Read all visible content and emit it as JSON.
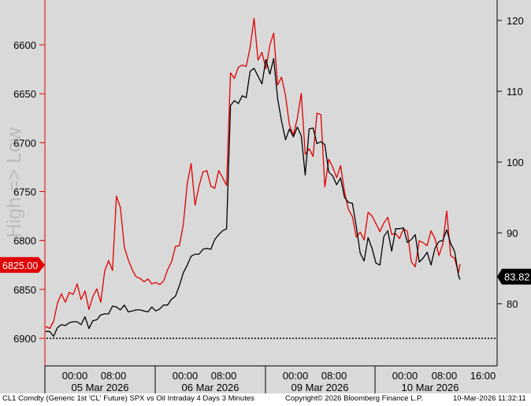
{
  "colors": {
    "plot_bg": "#d9d9d9",
    "spx_line": "#000000",
    "oil_line": "#e00000",
    "left_axis": "#e00000",
    "right_axis": "#000000"
  },
  "chart_data": {
    "type": "line",
    "watermark": "High => Low",
    "left_axis": {
      "reversed": true,
      "range": [
        6575,
        6925
      ],
      "ticks": [
        6600,
        6650,
        6700,
        6750,
        6800,
        6850,
        6900
      ],
      "tick_labels": [
        "6600",
        "6650",
        "6700",
        "6750",
        "6800",
        "6850",
        "6900"
      ],
      "reference_line": 6900,
      "marker": {
        "value": 6825,
        "label": "6825.00"
      }
    },
    "right_axis": {
      "range": [
        72.5,
        123.5
      ],
      "ticks": [
        80,
        90,
        100,
        110,
        120
      ],
      "tick_labels": [
        "80",
        "90",
        "100",
        "110",
        "120"
      ],
      "marker": {
        "value": 83.82,
        "label": "83.82"
      }
    },
    "x_axis": {
      "time_labels": [
        "00:00",
        "08:00",
        "00:00",
        "08:00",
        "00:00",
        "08:00",
        "00:00",
        "08:00",
        "16:00"
      ],
      "day_labels": [
        "05 Mar 2026",
        "06 Mar 2026",
        "09 Mar 2026",
        "10 Mar 2026"
      ]
    },
    "series": [
      {
        "id": "oil",
        "axis": "right",
        "x": [
          0,
          5,
          10,
          15,
          20,
          25,
          30,
          35,
          40,
          45,
          50,
          55,
          60,
          65,
          70,
          75,
          80,
          85,
          90,
          95,
          100,
          105,
          110,
          115,
          120,
          125,
          130,
          135,
          140,
          145,
          150,
          155,
          160,
          165,
          170,
          175,
          180,
          185,
          190,
          195,
          200,
          205,
          210,
          215,
          220,
          225,
          230,
          235,
          240,
          245,
          250,
          255,
          260,
          265,
          270,
          275,
          280,
          285,
          290,
          295,
          300,
          305,
          310,
          315,
          320,
          325,
          330,
          335,
          340,
          345,
          350,
          355,
          360,
          365,
          370,
          375,
          380,
          385,
          390,
          395,
          400,
          405,
          410,
          415,
          420,
          425,
          430,
          435,
          440,
          445,
          450,
          455,
          460,
          465,
          470,
          475,
          480,
          485,
          490,
          495,
          500,
          505,
          510,
          515,
          520,
          525,
          527
        ],
        "values": [
          76.8,
          76.5,
          77.5,
          80.1,
          81.4,
          80.2,
          81.6,
          81.3,
          82.8,
          80.6,
          81.8,
          79.2,
          81.0,
          82.1,
          80.2,
          84.6,
          86.1,
          84.7,
          95.2,
          93.6,
          88.0,
          86.2,
          84.8,
          83.8,
          83.6,
          83.1,
          83.5,
          82.8,
          83.0,
          82.7,
          83.2,
          84.8,
          85.9,
          88.1,
          88.2,
          91.2,
          97.0,
          99.8,
          93.9,
          96.6,
          98.6,
          98.8,
          96.6,
          96.3,
          98.8,
          97.8,
          96.7,
          112.6,
          111.8,
          113.4,
          113.7,
          113.5,
          116.2,
          120.3,
          114.4,
          115.5,
          113.2,
          116.5,
          118.2,
          110.9,
          112.0,
          109.4,
          105.2,
          103.8,
          106.2,
          109.7,
          101.1,
          101.9,
          100.8,
          106.9,
          106.7,
          96.5,
          100.4,
          99.3,
          97.8,
          99.5,
          95.8,
          93.3,
          92.3,
          89.4,
          90.1,
          89.0,
          92.9,
          92.4,
          91.3,
          90.2,
          91.4,
          92.2,
          89.8,
          89.9,
          89.2,
          90.6,
          90.2,
          85.9,
          85.2,
          88.9,
          88.6,
          88.2,
          90.3,
          89.2,
          86.8,
          88.4,
          93.1,
          86.8,
          86.4,
          84.4,
          85.6
        ]
      },
      {
        "id": "spx",
        "axis": "left",
        "x": [
          0,
          5,
          10,
          15,
          20,
          25,
          30,
          35,
          40,
          45,
          50,
          55,
          60,
          65,
          70,
          75,
          80,
          85,
          90,
          95,
          100,
          105,
          110,
          115,
          120,
          125,
          130,
          135,
          140,
          145,
          150,
          155,
          160,
          165,
          170,
          175,
          180,
          185,
          190,
          195,
          200,
          205,
          210,
          215,
          220,
          225,
          230,
          235,
          240,
          245,
          250,
          255,
          260,
          265,
          270,
          275,
          280,
          285,
          290,
          295,
          300,
          305,
          310,
          315,
          320,
          325,
          330,
          335,
          340,
          345,
          350,
          355,
          360,
          365,
          370,
          375,
          380,
          385,
          390,
          395,
          400,
          405,
          410,
          415,
          420,
          425,
          430,
          435,
          440,
          445,
          450,
          455,
          460,
          465,
          470,
          475,
          480,
          485,
          490,
          495,
          500,
          505,
          510,
          515,
          520,
          525,
          527
        ],
        "values": [
          6893,
          6893,
          6898,
          6889,
          6886,
          6887,
          6884,
          6883,
          6883,
          6886,
          6878,
          6890,
          6882,
          6881,
          6876,
          6875,
          6875,
          6867,
          6868,
          6871,
          6866,
          6873,
          6872,
          6871,
          6871,
          6872,
          6873,
          6868,
          6872,
          6870,
          6866,
          6866,
          6860,
          6857,
          6846,
          6833,
          6825,
          6816,
          6814,
          6814,
          6809,
          6808,
          6809,
          6799,
          6794,
          6790,
          6788,
          6662,
          6657,
          6660,
          6652,
          6654,
          6627,
          6624,
          6632,
          6640,
          6615,
          6630,
          6614,
          6655,
          6678,
          6697,
          6686,
          6694,
          6684,
          6693,
          6733,
          6686,
          6685,
          6701,
          6699,
          6702,
          6730,
          6734,
          6743,
          6736,
          6756,
          6761,
          6762,
          6786,
          6813,
          6821,
          6797,
          6808,
          6823,
          6825,
          6796,
          6790,
          6811,
          6788,
          6788,
          6787,
          6802,
          6799,
          6794,
          6822,
          6818,
          6812,
          6825,
          6808,
          6801,
          6800,
          6789,
          6803,
          6811,
          6836,
          6840
        ]
      }
    ]
  },
  "footer": {
    "title": "CL1 Comdty (Generic 1st 'CL' Future) SPX vs Oil Intraday 4 Days 3 Minutes",
    "copyright": "Copyright© 2026 Bloomberg Finance L.P.",
    "timestamp": "10-Mar-2026 11:32:11"
  }
}
